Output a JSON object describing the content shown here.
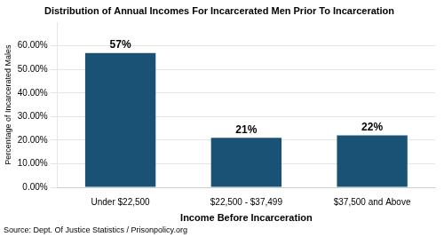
{
  "chart_data": {
    "type": "bar",
    "title": "Distribution of Annual Incomes For Incarcerated Men Prior To Incarceration",
    "categories": [
      "Under $22,500",
      "$22,500 - $37,499",
      "$37,500 and Above"
    ],
    "values": [
      57,
      21,
      22
    ],
    "value_labels": [
      "57%",
      "21%",
      "22%"
    ],
    "data_labels": true,
    "color": "#1a5276",
    "xlabel": "Income Before Incarceration",
    "ylabel": "Percentage of Incarcerated Males",
    "ylim": [
      0,
      70
    ],
    "yticks": [
      {
        "value": 0,
        "label": "0.00%"
      },
      {
        "value": 10,
        "label": "10.00%"
      },
      {
        "value": 20,
        "label": "20.00%"
      },
      {
        "value": 30,
        "label": "30.00%"
      },
      {
        "value": 40,
        "label": "40.00%"
      },
      {
        "value": 50,
        "label": "50.00%"
      },
      {
        "value": 60,
        "label": "60.00%"
      }
    ],
    "grid": true,
    "source": "Source: Dept. Of Justice Statistics / Prisonpolicy.org"
  }
}
